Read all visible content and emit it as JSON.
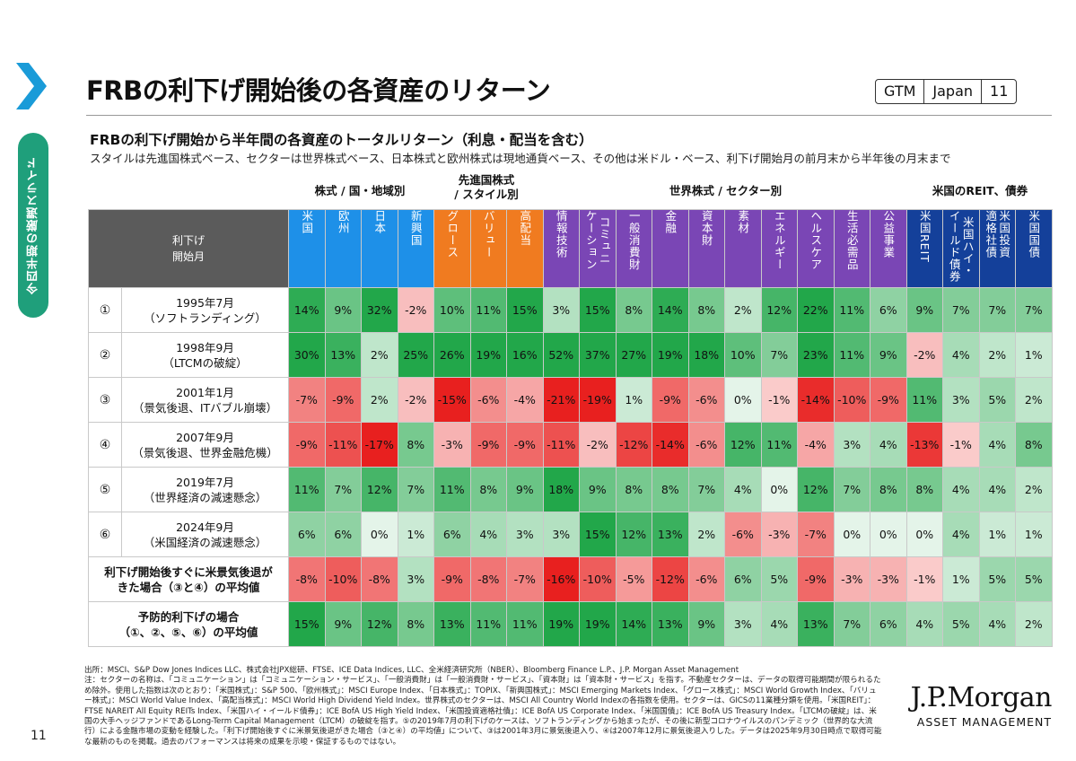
{
  "header": {
    "title": "FRBの利下げ開始後の各資産のリターン",
    "badge": [
      "GTM",
      "Japan",
      "11"
    ],
    "side_label": "今四半期の厳選スライド"
  },
  "subtitle": "FRBの利下げ開始から半年間の各資産のトータルリターン（利息・配当を含む）",
  "subnote": "スタイルは先進国株式ベース、セクターは世界株式ベース、日本株式と欧州株式は現地通貨ベース、その他は米ドル・ベース、利下げ開始月の前月末から半年後の月末まで",
  "groups": {
    "country": "株式 / 国・地域別",
    "style_line1": "先進国株式",
    "style_line2": "/ スタイル別",
    "sector": "世界株式 / セクター別",
    "reit": "米国のREIT、債券"
  },
  "corner": [
    "利下げ",
    "開始月"
  ],
  "columns": [
    {
      "label": "米国",
      "color": "#1e90e8"
    },
    {
      "label": "欧州",
      "color": "#1e90e8"
    },
    {
      "label": "日本",
      "color": "#1e90e8"
    },
    {
      "label": "新興国",
      "color": "#1e90e8"
    },
    {
      "label": "グロース",
      "color": "#f07b20"
    },
    {
      "label": "バリュー",
      "color": "#f07b20"
    },
    {
      "label": "高配当",
      "color": "#f07b20"
    },
    {
      "label": "情報技術",
      "color": "#7a46b5"
    },
    {
      "label": "コミュニ\nケーション",
      "color": "#7a46b5"
    },
    {
      "label": "一般消費財",
      "color": "#7a46b5"
    },
    {
      "label": "金融",
      "color": "#7a46b5"
    },
    {
      "label": "資本財",
      "color": "#7a46b5"
    },
    {
      "label": "素材",
      "color": "#7a46b5"
    },
    {
      "label": "エネルギー",
      "color": "#7a46b5"
    },
    {
      "label": "ヘルスケア",
      "color": "#7a46b5"
    },
    {
      "label": "生活必需品",
      "color": "#7a46b5"
    },
    {
      "label": "公益事業",
      "color": "#7a46b5"
    },
    {
      "label": "米国REIT",
      "color": "#14409a"
    },
    {
      "label": "米国ハイ・\nイールド債券",
      "color": "#14409a"
    },
    {
      "label": "米国投資\n適格社債",
      "color": "#14409a"
    },
    {
      "label": "米国国債",
      "color": "#14409a"
    }
  ],
  "rows": [
    {
      "idx": "①",
      "label1": "1995年7月",
      "label2": "（ソフトランディング）",
      "values": [
        14,
        9,
        32,
        -2,
        10,
        11,
        15,
        3,
        15,
        8,
        14,
        8,
        2,
        12,
        22,
        11,
        6,
        9,
        7,
        7,
        7
      ]
    },
    {
      "idx": "②",
      "label1": "1998年9月",
      "label2": "（LTCMの破綻）",
      "values": [
        30,
        13,
        2,
        25,
        26,
        19,
        16,
        52,
        37,
        27,
        19,
        18,
        10,
        7,
        23,
        11,
        9,
        -2,
        4,
        2,
        1
      ]
    },
    {
      "idx": "③",
      "label1": "2001年1月",
      "label2": "（景気後退、ITバブル崩壊）",
      "values": [
        -7,
        -9,
        2,
        -2,
        -15,
        -6,
        -4,
        -21,
        -19,
        1,
        -9,
        -6,
        0,
        -1,
        -14,
        -10,
        -9,
        11,
        3,
        5,
        2
      ]
    },
    {
      "idx": "④",
      "label1": "2007年9月",
      "label2": "（景気後退、世界金融危機）",
      "values": [
        -9,
        -11,
        -17,
        8,
        -3,
        -9,
        -9,
        -11,
        -2,
        -12,
        -14,
        -6,
        12,
        11,
        -4,
        3,
        4,
        -13,
        -1,
        4,
        8
      ]
    },
    {
      "idx": "⑤",
      "label1": "2019年7月",
      "label2": "（世界経済の減速懸念）",
      "values": [
        11,
        7,
        12,
        7,
        11,
        8,
        9,
        18,
        9,
        8,
        8,
        7,
        4,
        0,
        12,
        7,
        8,
        8,
        4,
        4,
        2
      ]
    },
    {
      "idx": "⑥",
      "label1": "2024年9月",
      "label2": "（米国経済の減速懸念）",
      "values": [
        6,
        6,
        0,
        1,
        6,
        4,
        3,
        3,
        15,
        12,
        13,
        2,
        -6,
        -3,
        -7,
        0,
        0,
        0,
        4,
        1,
        1
      ]
    }
  ],
  "avg_rows": [
    {
      "label1": "利下げ開始後すぐに米景気後退が",
      "label2": "きた場合（③と④）の平均値",
      "values": [
        -8,
        -10,
        -8,
        3,
        -9,
        -8,
        -7,
        -16,
        -10,
        -5,
        -12,
        -6,
        6,
        5,
        -9,
        -3,
        -3,
        -1,
        1,
        5,
        5
      ]
    },
    {
      "label1": "予防的利下げの場合",
      "label2": "（①、②、⑤、⑥）の平均値",
      "values": [
        15,
        9,
        12,
        8,
        13,
        11,
        11,
        19,
        19,
        14,
        13,
        9,
        3,
        4,
        13,
        7,
        6,
        4,
        5,
        4,
        2
      ]
    }
  ],
  "source": "出所：MSCI、S&P Dow Jones Indices LLC、株式会社JPX総研、FTSE、ICE Data Indices, LLC、全米経済研究所（NBER）、Bloomberg Finance L.P.、J.P. Morgan Asset Management\n注：セクターの名称は、「コミュニケーション」は「コミュニケーション・サービス」、「一般消費財」は「一般消費財・サービス」、「資本財」は「資本財・サービス」を指す。不動産セクターは、データの取得可能期間が限られるため除外。使用した指数は次のとおり：「米国株式」：S&P 500、「欧州株式」：MSCI Europe Index、「日本株式」：TOPIX、「新興国株式」：MSCI Emerging Markets Index、「グロース株式」：MSCI World Growth Index、「バリュー株式」：MSCI World Value Index、「高配当株式」：MSCI World High Dividend Yield Index。世界株式のセクターは、MSCI All Country World Indexの各指数を使用。セクターは、GICSの11業種分類を使用。「米国REIT」：FTSE NAREIT All Equity REITs Index、「米国ハイ・イールド債券」：ICE BofA US High Yield Index、「米国投資適格社債」：ICE BofA US Corporate Index、「米国国債」：ICE BofA US Treasury Index。「LTCMの破綻」は、米国の大手ヘッジファンドであるLong-Term Capital Management（LTCM）の破綻を指す。⑤の2019年7月の利下げのケースは、ソフトランディングから始まったが、その後に新型コロナウイルスのパンデミック（世界的な大流行）による金融市場の変動を経験した。「利下げ開始後すぐに米景気後退がきた場合（③と④）の平均値」について、③は2001年3月に景気後退入り、④は2007年12月に景気後退入りした。データは2025年9月30日時点で取得可能な最新のものを掲載。過去のパフォーマンスは将来の成果を示唆・保証するものではない。",
  "page_number": "11",
  "logo": {
    "name": "J.P.Morgan",
    "tagline": "ASSET MANAGEMENT"
  },
  "colors": {
    "positive_max": "#22a74a",
    "negative_max": "#e8201f",
    "neutral": "#ffffff",
    "accent": "#1f9f7b"
  }
}
